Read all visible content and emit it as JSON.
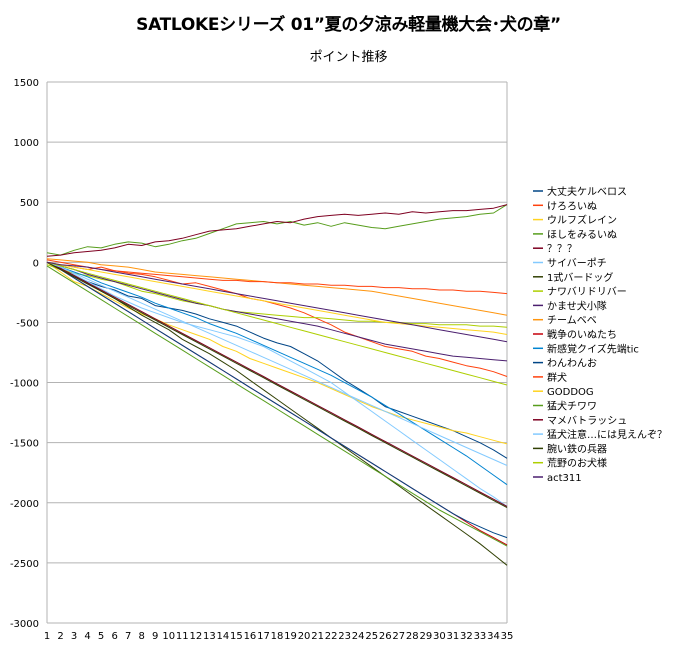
{
  "title": "SATLOKEシリーズ 01”夏の夕涼み軽量機大会･犬の章”",
  "subtitle": "ポイント推移",
  "chart_data": {
    "type": "line",
    "title": "SATLOKEシリーズ 01”夏の夕涼み軽量機大会･犬の章”",
    "subtitle": "ポイント推移",
    "xlabel": "",
    "ylabel": "",
    "x": [
      1,
      2,
      3,
      4,
      5,
      6,
      7,
      8,
      9,
      10,
      11,
      12,
      13,
      14,
      15,
      16,
      17,
      18,
      19,
      20,
      21,
      22,
      23,
      24,
      25,
      26,
      27,
      28,
      29,
      30,
      31,
      32,
      33,
      34,
      35
    ],
    "ylim": [
      -3000,
      1500
    ],
    "yticks": [
      1500,
      1000,
      500,
      0,
      -500,
      -1000,
      -1500,
      -2000,
      -2500,
      -3000
    ],
    "grid": "horizontal",
    "legend_position": "right",
    "series": [
      {
        "name": "大丈夫ケルベロス",
        "color": "#004586",
        "values": [
          0,
          -60,
          -120,
          -160,
          -200,
          -230,
          -280,
          -300,
          -360,
          -380,
          -400,
          -430,
          -470,
          -500,
          -530,
          -580,
          -630,
          -670,
          -700,
          -760,
          -820,
          -900,
          -980,
          -1050,
          -1120,
          -1200,
          -1240,
          -1280,
          -1320,
          -1360,
          -1400,
          -1450,
          -1500,
          -1560,
          -1630
        ]
      },
      {
        "name": "けろろいぬ",
        "color": "#ff420e",
        "values": [
          0,
          -20,
          -40,
          -60,
          -40,
          -70,
          -90,
          -100,
          -120,
          -150,
          -180,
          -170,
          -200,
          -230,
          -260,
          -300,
          -320,
          -350,
          -380,
          -420,
          -470,
          -520,
          -580,
          -620,
          -660,
          -700,
          -720,
          -740,
          -780,
          -800,
          -830,
          -860,
          -880,
          -910,
          -950
        ]
      },
      {
        "name": "ウルフズレイン",
        "color": "#ffd320",
        "values": [
          0,
          -80,
          -160,
          -200,
          -260,
          -320,
          -380,
          -430,
          -470,
          -520,
          -560,
          -600,
          -640,
          -700,
          -740,
          -800,
          -840,
          -880,
          -920,
          -960,
          -1000,
          -1050,
          -1100,
          -1150,
          -1200,
          -1240,
          -1280,
          -1310,
          -1340,
          -1370,
          -1400,
          -1420,
          -1450,
          -1480,
          -1510
        ]
      },
      {
        "name": "ほしをみるいぬ",
        "color": "#579d1c",
        "values": [
          80,
          60,
          100,
          130,
          120,
          150,
          170,
          160,
          130,
          150,
          180,
          200,
          240,
          280,
          320,
          330,
          340,
          320,
          340,
          310,
          330,
          300,
          330,
          310,
          290,
          280,
          300,
          320,
          340,
          360,
          370,
          380,
          400,
          410,
          480
        ]
      },
      {
        "name": "？？？",
        "color": "#7e0021",
        "values": [
          50,
          60,
          80,
          90,
          100,
          120,
          150,
          140,
          170,
          180,
          200,
          230,
          260,
          270,
          280,
          300,
          320,
          340,
          330,
          360,
          380,
          390,
          400,
          390,
          400,
          410,
          400,
          420,
          410,
          420,
          430,
          430,
          440,
          450,
          480
        ]
      },
      {
        "name": "サイバーポチ",
        "color": "#83caff",
        "values": [
          0,
          -40,
          -100,
          -160,
          -220,
          -280,
          -330,
          -380,
          -420,
          -460,
          -500,
          -530,
          -560,
          -590,
          -620,
          -660,
          -700,
          -760,
          -820,
          -880,
          -940,
          -1000,
          -1080,
          -1160,
          -1240,
          -1320,
          -1400,
          -1480,
          -1560,
          -1640,
          -1720,
          -1800,
          -1880,
          -1950,
          -2030
        ]
      },
      {
        "name": "1式バードッグ",
        "color": "#314004",
        "values": [
          0,
          -50,
          -110,
          -170,
          -240,
          -300,
          -370,
          -440,
          -500,
          -560,
          -640,
          -700,
          -760,
          -830,
          -900,
          -980,
          -1060,
          -1140,
          -1220,
          -1300,
          -1380,
          -1460,
          -1540,
          -1620,
          -1700,
          -1780,
          -1860,
          -1940,
          -2020,
          -2100,
          -2180,
          -2260,
          -2340,
          -2430,
          -2520
        ]
      },
      {
        "name": "ナワバリドリバー",
        "color": "#aecf00",
        "values": [
          -20,
          -60,
          -90,
          -110,
          -140,
          -160,
          -200,
          -240,
          -260,
          -290,
          -320,
          -340,
          -360,
          -390,
          -410,
          -420,
          -430,
          -440,
          -450,
          -460,
          -460,
          -470,
          -480,
          -490,
          -490,
          -500,
          -500,
          -510,
          -510,
          -520,
          -520,
          -520,
          -530,
          -530,
          -540
        ]
      },
      {
        "name": "かませ犬小隊",
        "color": "#4b1f6f",
        "values": [
          0,
          -30,
          -60,
          -100,
          -130,
          -160,
          -190,
          -220,
          -250,
          -280,
          -310,
          -340,
          -360,
          -390,
          -410,
          -430,
          -450,
          -470,
          -490,
          -510,
          -530,
          -560,
          -590,
          -620,
          -650,
          -680,
          -700,
          -720,
          -740,
          -760,
          -780,
          -790,
          -800,
          -810,
          -820
        ]
      },
      {
        "name": "チームベベ",
        "color": "#ff950e",
        "values": [
          30,
          20,
          10,
          0,
          -20,
          -30,
          -40,
          -60,
          -80,
          -90,
          -100,
          -110,
          -120,
          -130,
          -140,
          -150,
          -160,
          -170,
          -180,
          -190,
          -200,
          -210,
          -220,
          -230,
          -240,
          -260,
          -280,
          -300,
          -320,
          -340,
          -360,
          -380,
          -400,
          -420,
          -440
        ]
      },
      {
        "name": "戦争のいぬたち",
        "color": "#c5000b",
        "values": [
          0,
          -60,
          -130,
          -200,
          -270,
          -340,
          -410,
          -480,
          -550,
          -620,
          -690,
          -760,
          -830,
          -900,
          -970,
          -1040,
          -1110,
          -1180,
          -1250,
          -1320,
          -1390,
          -1460,
          -1530,
          -1600,
          -1670,
          -1740,
          -1810,
          -1880,
          -1950,
          -2020,
          -2090,
          -2160,
          -2230,
          -2290,
          -2350
        ]
      },
      {
        "name": "新感覚クイズ先端tic",
        "color": "#0084d1",
        "values": [
          0,
          -40,
          -80,
          -120,
          -170,
          -210,
          -250,
          -290,
          -340,
          -380,
          -420,
          -460,
          -510,
          -550,
          -590,
          -640,
          -690,
          -740,
          -790,
          -840,
          -890,
          -940,
          -1000,
          -1060,
          -1120,
          -1190,
          -1260,
          -1330,
          -1400,
          -1470,
          -1540,
          -1610,
          -1690,
          -1770,
          -1850
        ]
      },
      {
        "name": "わんわんお",
        "color": "#004586",
        "values": [
          0,
          -60,
          -130,
          -200,
          -270,
          -340,
          -410,
          -480,
          -550,
          -620,
          -690,
          -760,
          -830,
          -900,
          -970,
          -1040,
          -1110,
          -1180,
          -1250,
          -1320,
          -1390,
          -1460,
          -1530,
          -1600,
          -1670,
          -1740,
          -1810,
          -1880,
          -1950,
          -2020,
          -2090,
          -2150,
          -2200,
          -2250,
          -2290
        ]
      },
      {
        "name": "群犬",
        "color": "#ff420e",
        "values": [
          20,
          0,
          -20,
          -40,
          -60,
          -70,
          -80,
          -90,
          -100,
          -110,
          -120,
          -130,
          -140,
          -150,
          -150,
          -160,
          -160,
          -170,
          -170,
          -180,
          -180,
          -190,
          -190,
          -200,
          -200,
          -210,
          -210,
          -220,
          -220,
          -230,
          -230,
          -240,
          -240,
          -250,
          -260
        ]
      },
      {
        "name": "GODDOG",
        "color": "#ffd320",
        "values": [
          0,
          -20,
          -40,
          -60,
          -80,
          -100,
          -120,
          -140,
          -160,
          -180,
          -200,
          -220,
          -240,
          -260,
          -280,
          -300,
          -320,
          -340,
          -360,
          -380,
          -400,
          -420,
          -440,
          -460,
          -480,
          -500,
          -510,
          -520,
          -530,
          -540,
          -550,
          -560,
          -570,
          -580,
          -600
        ]
      },
      {
        "name": "猛犬チワワ",
        "color": "#579d1c",
        "values": [
          -30,
          -100,
          -170,
          -240,
          -310,
          -380,
          -450,
          -520,
          -590,
          -660,
          -730,
          -800,
          -870,
          -940,
          -1010,
          -1080,
          -1150,
          -1220,
          -1290,
          -1360,
          -1430,
          -1500,
          -1570,
          -1640,
          -1710,
          -1780,
          -1850,
          -1920,
          -1990,
          -2060,
          -2120,
          -2180,
          -2240,
          -2300,
          -2360
        ]
      },
      {
        "name": "マメバトラッシュ",
        "color": "#7e0021",
        "values": [
          0,
          -50,
          -110,
          -170,
          -230,
          -290,
          -350,
          -410,
          -470,
          -530,
          -590,
          -650,
          -710,
          -770,
          -830,
          -890,
          -950,
          -1010,
          -1070,
          -1130,
          -1190,
          -1250,
          -1310,
          -1370,
          -1430,
          -1490,
          -1550,
          -1610,
          -1670,
          -1730,
          -1790,
          -1850,
          -1910,
          -1970,
          -2030
        ]
      },
      {
        "name": "猛犬注意…には見えんぞ？",
        "color": "#83caff",
        "values": [
          0,
          -40,
          -90,
          -140,
          -190,
          -240,
          -290,
          -340,
          -390,
          -440,
          -490,
          -540,
          -590,
          -640,
          -690,
          -740,
          -790,
          -840,
          -890,
          -940,
          -990,
          -1040,
          -1090,
          -1140,
          -1190,
          -1240,
          -1290,
          -1340,
          -1390,
          -1440,
          -1490,
          -1540,
          -1590,
          -1640,
          -1690
        ]
      },
      {
        "name": "腕い鉄の兵器",
        "color": "#314004",
        "values": [
          0,
          -60,
          -120,
          -180,
          -240,
          -300,
          -360,
          -420,
          -480,
          -540,
          -600,
          -660,
          -720,
          -780,
          -840,
          -900,
          -960,
          -1020,
          -1080,
          -1140,
          -1200,
          -1260,
          -1320,
          -1380,
          -1440,
          -1500,
          -1560,
          -1620,
          -1680,
          -1740,
          -1800,
          -1860,
          -1920,
          -1980,
          -2040
        ]
      },
      {
        "name": "荒野のお犬様",
        "color": "#aecf00",
        "values": [
          0,
          -30,
          -60,
          -90,
          -120,
          -150,
          -180,
          -210,
          -240,
          -270,
          -300,
          -330,
          -360,
          -390,
          -420,
          -450,
          -480,
          -510,
          -540,
          -570,
          -600,
          -630,
          -660,
          -690,
          -720,
          -750,
          -780,
          -810,
          -840,
          -870,
          -900,
          -930,
          -960,
          -990,
          -1020
        ]
      },
      {
        "name": "act311",
        "color": "#4b1f6f",
        "values": [
          0,
          -20,
          -30,
          -40,
          -60,
          -80,
          -100,
          -120,
          -140,
          -160,
          -180,
          -200,
          -220,
          -240,
          -260,
          -280,
          -300,
          -320,
          -340,
          -360,
          -380,
          -400,
          -420,
          -440,
          -460,
          -480,
          -500,
          -520,
          -540,
          -560,
          -580,
          -600,
          -620,
          -640,
          -660
        ]
      }
    ]
  }
}
